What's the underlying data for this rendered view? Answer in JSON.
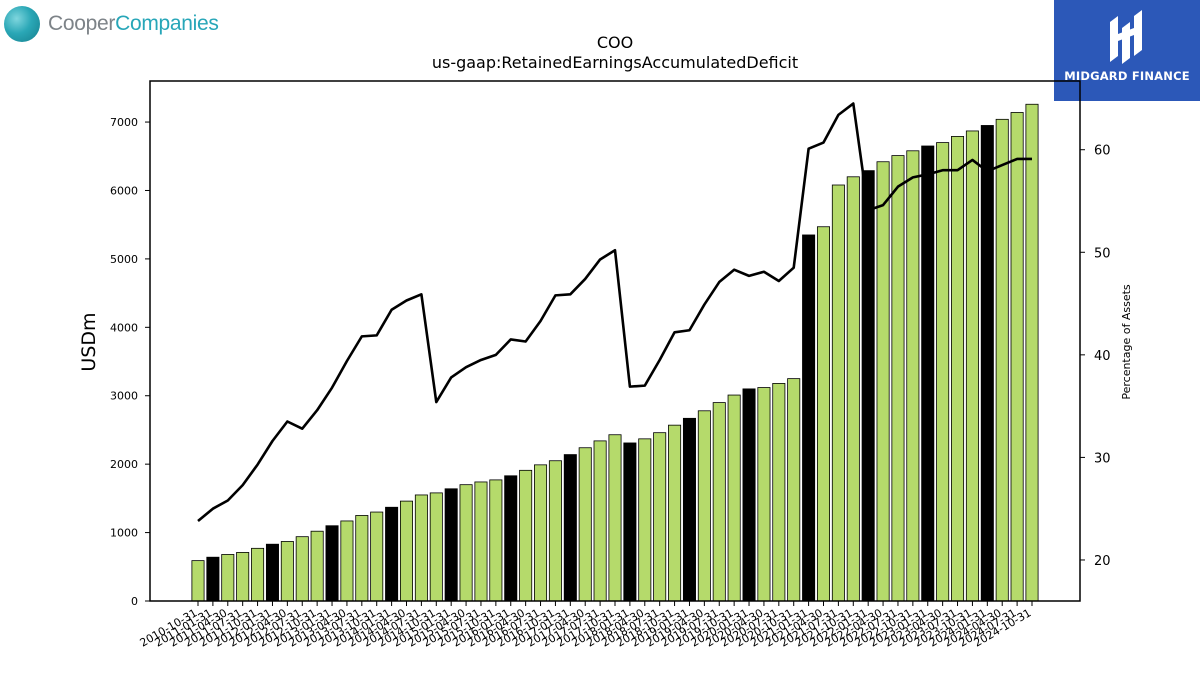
{
  "brand": {
    "left_logo_part1": "Cooper",
    "left_logo_part2": "Companies",
    "right_logo_text": "MIDGARD FINANCE",
    "left_orb_icon": "globe-logo-icon",
    "right_mark_icon": "midgard-mark-icon"
  },
  "chart_data": {
    "type": "bar",
    "title": "COO",
    "subtitle": "us-gaap:RetainedEarningsAccumulatedDeficit",
    "ylabel": "USDm",
    "y2label": "Percentage of Assets",
    "ylim": [
      0,
      7600
    ],
    "y2lim": [
      16,
      66.7
    ],
    "yticks": [
      0,
      1000,
      2000,
      3000,
      4000,
      5000,
      6000,
      7000
    ],
    "y2ticks": [
      20,
      30,
      40,
      50,
      60
    ],
    "grid": false,
    "colors": {
      "quarter_bar": "#b5da6b",
      "annual_bar": "#000000",
      "line": "#000000"
    },
    "categories": [
      "2010-10-31",
      "2011-01-31",
      "2011-04-30",
      "2011-07-31",
      "2011-10-31",
      "2012-01-31",
      "2012-04-30",
      "2012-07-31",
      "2012-10-31",
      "2013-01-31",
      "2013-04-30",
      "2013-07-31",
      "2013-10-31",
      "2014-01-31",
      "2014-04-30",
      "2014-07-31",
      "2014-10-31",
      "2015-01-31",
      "2015-04-30",
      "2015-07-31",
      "2015-10-31",
      "2016-01-31",
      "2016-04-30",
      "2016-07-31",
      "2016-10-31",
      "2017-01-31",
      "2017-04-30",
      "2017-07-31",
      "2017-10-31",
      "2018-01-31",
      "2018-04-30",
      "2018-07-31",
      "2018-10-31",
      "2019-01-31",
      "2019-04-30",
      "2019-07-31",
      "2019-10-31",
      "2020-01-31",
      "2020-04-30",
      "2020-07-31",
      "2020-10-31",
      "2021-01-31",
      "2021-04-30",
      "2021-07-31",
      "2021-10-31",
      "2022-01-31",
      "2022-04-30",
      "2022-07-31",
      "2022-10-31",
      "2023-01-31",
      "2023-04-30",
      "2023-07-31",
      "2023-10-31",
      "2024-01-31",
      "2024-04-30",
      "2024-07-31",
      "2024-10-31"
    ],
    "annual_flags": [
      false,
      true,
      false,
      false,
      false,
      true,
      false,
      false,
      false,
      true,
      false,
      false,
      false,
      true,
      false,
      false,
      false,
      true,
      false,
      false,
      false,
      true,
      false,
      false,
      false,
      true,
      false,
      false,
      false,
      true,
      false,
      false,
      false,
      true,
      false,
      false,
      false,
      true,
      false,
      false,
      false,
      true,
      false,
      false,
      false,
      true,
      false,
      false,
      false,
      true,
      false,
      false,
      false,
      true,
      false,
      false,
      false
    ],
    "series": [
      {
        "values": [
          590,
          640,
          680,
          710,
          770,
          830,
          870,
          940,
          1020,
          1100,
          1170,
          1250,
          1300,
          1370,
          1460,
          1550,
          1580,
          1640,
          1700,
          1740,
          1770,
          1830,
          1910,
          1990,
          2050,
          2140,
          2240,
          2340,
          2430,
          2310,
          2370,
          2460,
          2570,
          2670,
          2780,
          2900,
          3010,
          3100,
          3120,
          3180,
          3250,
          5350,
          5470,
          6080,
          6200,
          6290,
          6420,
          6510,
          6580,
          6650,
          6700,
          6790,
          6870,
          6950,
          7040,
          7140,
          7260
        ]
      },
      {
        "axis": "right",
        "values": [
          23.8,
          25.0,
          25.8,
          27.3,
          29.3,
          31.6,
          33.5,
          32.8,
          34.6,
          36.8,
          39.4,
          41.8,
          41.9,
          44.4,
          45.3,
          45.9,
          35.4,
          37.8,
          38.8,
          39.5,
          40.0,
          41.5,
          41.3,
          43.3,
          45.8,
          45.9,
          47.4,
          49.3,
          50.2,
          36.9,
          37.0,
          39.5,
          42.2,
          42.4,
          44.9,
          47.1,
          48.3,
          47.7,
          48.1,
          47.2,
          48.5,
          60.1,
          60.7,
          63.4,
          64.5,
          54.1,
          54.6,
          56.4,
          57.3,
          57.6,
          58.0,
          58.0,
          59.0,
          57.9,
          58.5,
          59.1,
          59.1
        ]
      }
    ]
  }
}
